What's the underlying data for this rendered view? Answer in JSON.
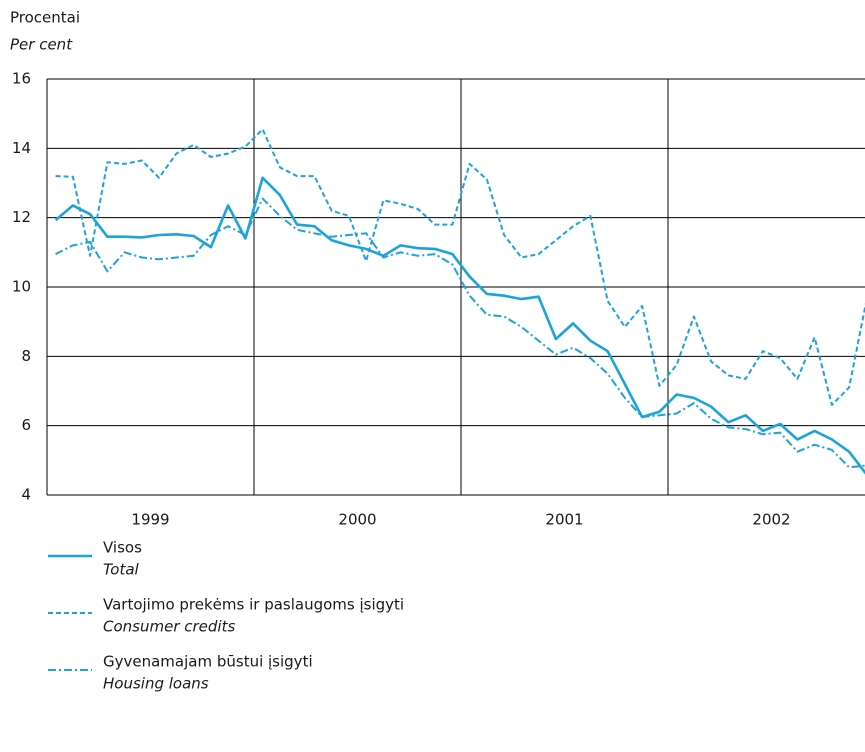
{
  "chart_data": {
    "type": "line",
    "y_label": "Procentai",
    "y_label_en": "Per cent",
    "categories": [
      null,
      null,
      null,
      null,
      null,
      null,
      "1999",
      null,
      null,
      null,
      null,
      null,
      null,
      null,
      null,
      null,
      null,
      null,
      "2000",
      null,
      null,
      null,
      null,
      null,
      null,
      null,
      null,
      null,
      null,
      null,
      "2001",
      null,
      null,
      null,
      null,
      null,
      null,
      null,
      null,
      null,
      null,
      null,
      "2002",
      null,
      null,
      null,
      null,
      null
    ],
    "ylim": [
      4,
      16
    ],
    "yticks": [
      4,
      6,
      8,
      10,
      12,
      14,
      16
    ],
    "grid": true,
    "series": [
      {
        "name": "Visos",
        "name_en": "Total",
        "color": "#1ba3dc",
        "dash": "solid",
        "values": [
          11.93,
          12.35,
          12.1,
          11.45,
          11.45,
          11.43,
          11.5,
          11.52,
          11.47,
          11.15,
          12.35,
          11.4,
          13.15,
          12.65,
          11.8,
          11.75,
          11.35,
          11.2,
          11.1,
          10.9,
          11.2,
          11.12,
          11.1,
          10.95,
          10.3,
          9.8,
          9.75,
          9.65,
          9.72,
          8.5,
          8.95,
          8.45,
          8.15,
          7.2,
          6.25,
          6.4,
          6.9,
          6.8,
          6.55,
          6.1,
          6.3,
          5.85,
          6.05,
          5.6,
          5.85,
          5.6,
          5.25,
          4.6
        ]
      },
      {
        "name": "Vartojimo prekėms ir paslaugoms įsigyti",
        "name_en": "Consumer credits",
        "color": "#1ba3dc",
        "dash": "dashed",
        "values": [
          13.2,
          13.18,
          10.9,
          13.6,
          13.55,
          13.65,
          13.15,
          13.85,
          14.1,
          13.75,
          13.85,
          14.05,
          14.55,
          13.45,
          13.2,
          13.2,
          12.2,
          12.05,
          10.75,
          12.5,
          12.4,
          12.25,
          11.8,
          11.8,
          13.55,
          13.1,
          11.5,
          10.85,
          10.95,
          11.35,
          11.75,
          12.05,
          9.6,
          8.85,
          9.45,
          7.15,
          7.75,
          9.15,
          7.85,
          7.45,
          7.35,
          8.15,
          7.95,
          7.35,
          8.55,
          6.6,
          7.1,
          9.6
        ]
      },
      {
        "name": "Gyvenamajam būstui įsigyti",
        "name_en": "Housing loans",
        "color": "#1ba3dc",
        "dash": "dashdot",
        "values": [
          10.95,
          11.2,
          11.3,
          10.45,
          11.0,
          10.85,
          10.8,
          10.85,
          10.9,
          11.5,
          11.75,
          11.5,
          12.55,
          12.05,
          11.65,
          11.55,
          11.45,
          11.5,
          11.55,
          10.85,
          11.0,
          10.9,
          10.95,
          10.65,
          9.75,
          9.2,
          9.15,
          8.85,
          8.45,
          8.05,
          8.25,
          7.95,
          7.5,
          6.8,
          6.25,
          6.3,
          6.35,
          6.65,
          6.2,
          5.95,
          5.9,
          5.75,
          5.8,
          5.25,
          5.45,
          5.3,
          4.8,
          4.85
        ]
      }
    ]
  }
}
